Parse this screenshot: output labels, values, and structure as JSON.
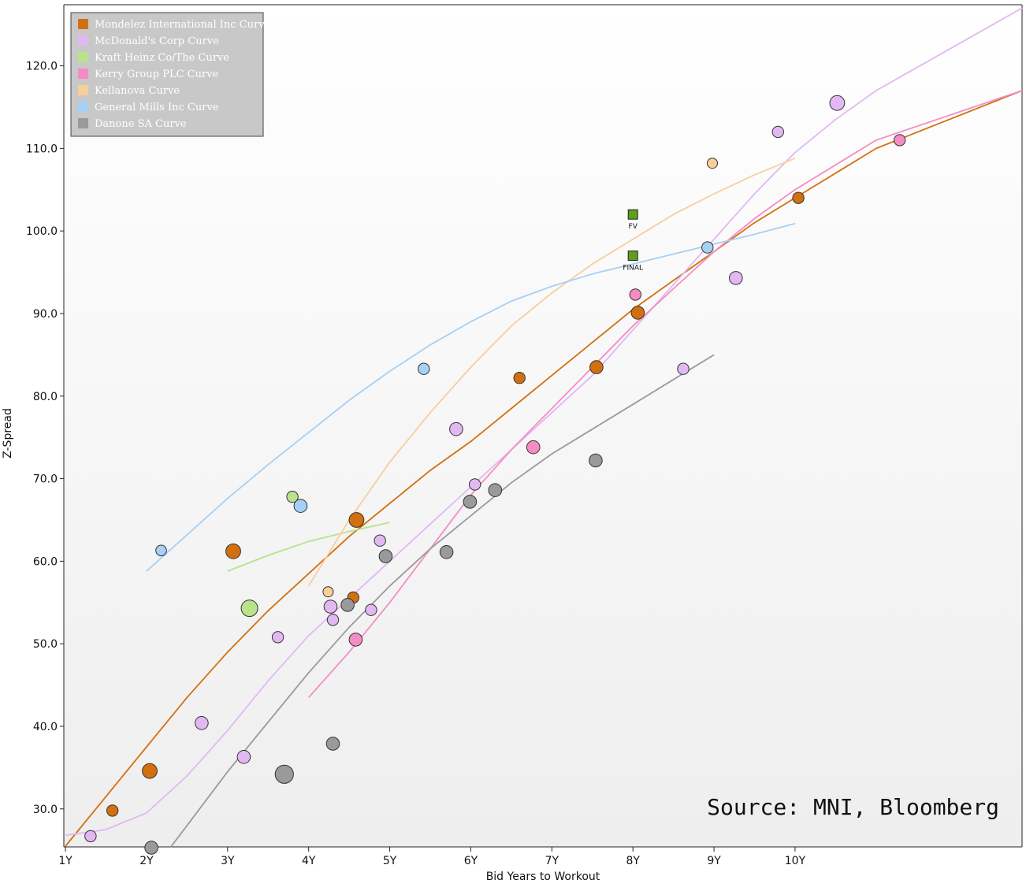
{
  "chart_data": {
    "type": "scatter",
    "title": "",
    "xlabel": "Bid Years to Workout",
    "ylabel": "Z-Spread",
    "xlim": [
      0.98,
      12.8
    ],
    "ylim": [
      25.4,
      127.4
    ],
    "x_ticks": [
      1,
      2,
      3,
      4,
      5,
      6,
      7,
      8,
      9,
      10
    ],
    "x_tick_labels": [
      "1Y",
      "2Y",
      "3Y",
      "4Y",
      "5Y",
      "6Y",
      "7Y",
      "8Y",
      "9Y",
      "10Y"
    ],
    "y_ticks": [
      30,
      40,
      50,
      60,
      70,
      80,
      90,
      100,
      110,
      120
    ],
    "y_tick_labels": [
      "30.0",
      "40.0",
      "50.0",
      "60.0",
      "70.0",
      "80.0",
      "90.0",
      "100.0",
      "110.0",
      "120.0"
    ],
    "legend_position": "top-left",
    "source": "Source: MNI, Bloomberg",
    "series": [
      {
        "name": "Mondelez International Inc Curve",
        "color": "#d2700f",
        "curve": [
          [
            1,
            25.5
          ],
          [
            1.5,
            31.5
          ],
          [
            2,
            37.5
          ],
          [
            2.5,
            43.5
          ],
          [
            3,
            49
          ],
          [
            3.5,
            54
          ],
          [
            4,
            58.5
          ],
          [
            4.5,
            63
          ],
          [
            5,
            67
          ],
          [
            5.5,
            71
          ],
          [
            6,
            74.5
          ],
          [
            6.5,
            78.5
          ],
          [
            7,
            82.5
          ],
          [
            7.5,
            86.5
          ],
          [
            8,
            90.5
          ],
          [
            8.5,
            94
          ],
          [
            9,
            97.5
          ],
          [
            9.5,
            101
          ],
          [
            10,
            104
          ],
          [
            10.5,
            107
          ],
          [
            11,
            110
          ],
          [
            12.8,
            117
          ]
        ],
        "points": [
          [
            1.58,
            29.8,
            1
          ],
          [
            2.04,
            34.6,
            2
          ],
          [
            3.07,
            61.2,
            2
          ],
          [
            4.55,
            55.6,
            1
          ],
          [
            4.59,
            65,
            2
          ],
          [
            6.6,
            82.2,
            1
          ],
          [
            7.55,
            83.5,
            1.5
          ],
          [
            8.06,
            90.1,
            1.5
          ],
          [
            10.04,
            104,
            1
          ]
        ]
      },
      {
        "name": "McDonald's Corp Curve",
        "color": "#e2b8f2",
        "curve": [
          [
            1,
            26.8
          ],
          [
            1.5,
            27.5
          ],
          [
            2,
            29.5
          ],
          [
            2.5,
            34
          ],
          [
            3,
            39.5
          ],
          [
            3.5,
            45.5
          ],
          [
            4,
            51
          ],
          [
            4.5,
            55.5
          ],
          [
            5,
            60
          ],
          [
            5.5,
            64.5
          ],
          [
            6,
            69
          ],
          [
            6.5,
            73.5
          ],
          [
            7,
            78
          ],
          [
            7.5,
            82.5
          ],
          [
            8,
            88
          ],
          [
            8.5,
            93.5
          ],
          [
            9,
            99
          ],
          [
            9.5,
            104.5
          ],
          [
            10,
            109.5
          ],
          [
            10.5,
            113.5
          ],
          [
            11,
            117
          ],
          [
            12.8,
            127
          ]
        ],
        "points": [
          [
            1.31,
            26.7,
            1
          ],
          [
            2.68,
            40.4,
            1.5
          ],
          [
            3.2,
            36.3,
            1.5
          ],
          [
            3.62,
            50.8,
            1
          ],
          [
            4.27,
            54.5,
            1.5
          ],
          [
            4.3,
            52.9,
            1
          ],
          [
            4.77,
            54.1,
            1
          ],
          [
            4.88,
            62.5,
            1
          ],
          [
            5.82,
            76,
            1.5
          ],
          [
            6.05,
            69.3,
            1
          ],
          [
            8.62,
            83.3,
            1
          ],
          [
            9.27,
            94.3,
            1.5
          ],
          [
            9.79,
            112,
            1
          ],
          [
            10.52,
            115.5,
            2
          ]
        ]
      },
      {
        "name": "Kraft Heinz Co/The Curve",
        "color": "#b9e28a",
        "curve": [
          [
            3,
            58.8
          ],
          [
            3.5,
            60.7
          ],
          [
            4,
            62.4
          ],
          [
            4.5,
            63.6
          ],
          [
            5,
            64.7
          ]
        ],
        "points": [
          [
            3.27,
            54.3,
            2.5
          ],
          [
            3.8,
            67.8,
            1
          ]
        ]
      },
      {
        "name": "Kerry Group PLC Curve",
        "color": "#f58cc4",
        "curve": [
          [
            4,
            43.5
          ],
          [
            4.5,
            49
          ],
          [
            5,
            55
          ],
          [
            5.5,
            61.5
          ],
          [
            6,
            68
          ],
          [
            6.5,
            73.5
          ],
          [
            7,
            78.5
          ],
          [
            7.5,
            83.5
          ],
          [
            8,
            88.5
          ],
          [
            8.5,
            93
          ],
          [
            9,
            97.5
          ],
          [
            9.5,
            101.5
          ],
          [
            10,
            105
          ],
          [
            10.5,
            108
          ],
          [
            11,
            111
          ],
          [
            12.8,
            117
          ]
        ],
        "points": [
          [
            4.58,
            50.5,
            1.5
          ],
          [
            6.77,
            73.8,
            1.5
          ],
          [
            8.03,
            92.3,
            1
          ],
          [
            11.29,
            111,
            1
          ]
        ]
      },
      {
        "name": "Kellanova Curve",
        "color": "#f8ce9a",
        "curve": [
          [
            4,
            57
          ],
          [
            4.5,
            65
          ],
          [
            5,
            72
          ],
          [
            5.5,
            78
          ],
          [
            6,
            83.5
          ],
          [
            6.5,
            88.5
          ],
          [
            7,
            92.5
          ],
          [
            7.5,
            96
          ],
          [
            8,
            99
          ],
          [
            8.5,
            102
          ],
          [
            9,
            104.5
          ],
          [
            9.5,
            106.8
          ],
          [
            10,
            108.8
          ]
        ],
        "points": [
          [
            4.24,
            56.3,
            0.7
          ],
          [
            8.98,
            108.2,
            0.7
          ]
        ]
      },
      {
        "name": "General Mills Inc Curve",
        "color": "#a6d0f5",
        "curve": [
          [
            2,
            58.8
          ],
          [
            2.5,
            63.2
          ],
          [
            3,
            67.6
          ],
          [
            3.5,
            71.7
          ],
          [
            4,
            75.6
          ],
          [
            4.5,
            79.5
          ],
          [
            5,
            83
          ],
          [
            5.5,
            86.2
          ],
          [
            6,
            89
          ],
          [
            6.5,
            91.5
          ],
          [
            7,
            93.3
          ],
          [
            7.5,
            94.8
          ],
          [
            8,
            96
          ],
          [
            8.5,
            97.2
          ],
          [
            9,
            98.4
          ],
          [
            9.5,
            99.6
          ],
          [
            10,
            100.9
          ]
        ],
        "points": [
          [
            2.18,
            61.3,
            0.8
          ],
          [
            3.9,
            66.7,
            1.5
          ],
          [
            5.42,
            83.3,
            1
          ],
          [
            8.92,
            98,
            1
          ]
        ]
      },
      {
        "name": "Danone SA Curve",
        "color": "#9a9a9a",
        "curve": [
          [
            2.3,
            25.4
          ],
          [
            2.5,
            28
          ],
          [
            3,
            34.5
          ],
          [
            3.5,
            40.5
          ],
          [
            4,
            46.5
          ],
          [
            4.5,
            52
          ],
          [
            5,
            57
          ],
          [
            5.5,
            61.5
          ],
          [
            6,
            65.5
          ],
          [
            6.5,
            69.5
          ],
          [
            7,
            73
          ],
          [
            7.5,
            76
          ],
          [
            8,
            79
          ],
          [
            8.5,
            82
          ],
          [
            9,
            85
          ]
        ],
        "points": [
          [
            2.06,
            25.3,
            1.5
          ],
          [
            3.7,
            34.2,
            3
          ],
          [
            4.3,
            37.9,
            1.5
          ],
          [
            4.48,
            54.7,
            1.5
          ],
          [
            4.95,
            60.6,
            1.5
          ],
          [
            5.7,
            61.1,
            1.5
          ],
          [
            5.99,
            67.2,
            1.5
          ],
          [
            6.3,
            68.6,
            1.5
          ],
          [
            7.54,
            72.2,
            1.5
          ]
        ]
      }
    ],
    "annotations": [
      {
        "label": "FV",
        "x": 8,
        "y": 102,
        "color": "#5f9f1a"
      },
      {
        "label": "FINAL",
        "x": 8,
        "y": 97,
        "color": "#5f9f1a"
      }
    ]
  }
}
